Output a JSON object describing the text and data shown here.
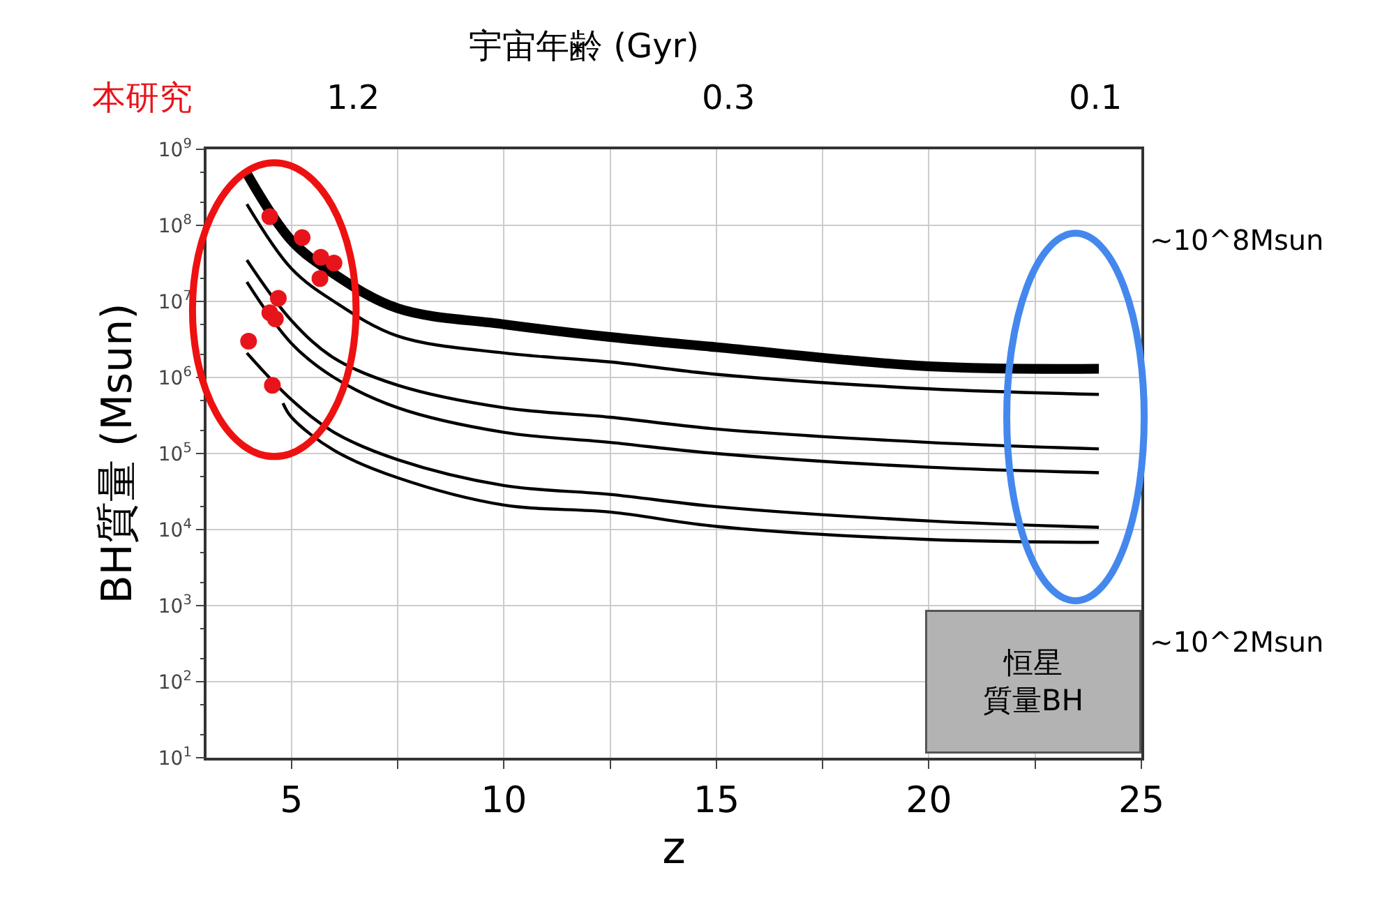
{
  "chart_data": {
    "type": "line",
    "xlabel": "z",
    "ylabel": "BH質量 (Msun)",
    "xlim": [
      3,
      25
    ],
    "xticks": [
      5,
      {
        "value": 7.5,
        "label": null
      },
      10,
      {
        "value": 12.5,
        "label": null
      },
      15,
      {
        "value": 17.5,
        "label": null
      },
      20,
      {
        "value": 22.5,
        "label": null
      },
      25
    ],
    "log": "y",
    "ylim": [
      10,
      1000000000
    ],
    "yticks": [
      {
        "value": 10,
        "label": "10$^{1}$"
      },
      {
        "value": 100,
        "label": "10$^{2}$"
      },
      {
        "value": 1000,
        "label": "10$^{3}$"
      },
      {
        "value": 10000,
        "label": "10$^{4}$"
      },
      {
        "value": 100000,
        "label": "10$^{5}$"
      },
      {
        "value": 1000000,
        "label": "10$^{6}$"
      },
      {
        "value": 10000000,
        "label": "10$^{7}$"
      },
      {
        "value": 100000000,
        "label": "10$^{8}$"
      },
      {
        "value": 1000000000,
        "label": "10$^{9}$"
      }
    ],
    "grid": true,
    "line_style": "solid",
    "x": [
      3.95,
      5,
      6,
      7.5,
      10,
      12.5,
      15,
      20,
      24
    ],
    "series": [
      {
        "color": "#000000",
        "values": [
          480000000,
          63000000,
          23000000,
          8100000,
          5000000,
          3400000,
          2500000,
          1400000,
          1300000
        ]
      },
      {
        "color": "#000000",
        "values": [
          190000000,
          27000000,
          10000000,
          3500000,
          2100000,
          1600000,
          1100000,
          710000,
          600000
        ]
      },
      {
        "color": "#000000",
        "values": [
          35000000,
          5600000,
          1800000,
          790000,
          400000,
          300000,
          210000,
          140000,
          115000
        ]
      },
      {
        "color": "#000000",
        "values": [
          18000000,
          2800000,
          1000000,
          400000,
          190000,
          140000,
          100000,
          66000,
          56000
        ]
      },
      {
        "color": "#000000",
        "values": [
          2100000,
          510000,
          190000,
          83000,
          38000,
          29000,
          20000,
          13000,
          10700
        ]
      },
      {
        "color": "#000000",
        "x": [
          4.8,
          5,
          6,
          7.5,
          10,
          12.5,
          15,
          20,
          24
        ],
        "values": [
          460000,
          300000,
          110000,
          48000,
          21000,
          17000,
          11000,
          7400,
          6800
        ]
      },
      {
        "type": "scatter",
        "marker": "circle",
        "color": "#e8141b",
        "x": [
          4.49,
          5.25,
          5.69,
          6.0,
          5.67,
          4.69,
          4.49,
          4.62,
          3.99,
          4.55
        ],
        "values": [
          130000000,
          69000000,
          38000000,
          32000000,
          20000000,
          11000000,
          7100000,
          5900000,
          3000000,
          790000
        ]
      }
    ],
    "annotations": [
      "本研究",
      "~10^8Msun",
      "~10^2Msun",
      "恒星質量BH",
      "宇宙年齢 (Gyr)",
      "1.2",
      "0.3",
      "0.1"
    ]
  }
}
